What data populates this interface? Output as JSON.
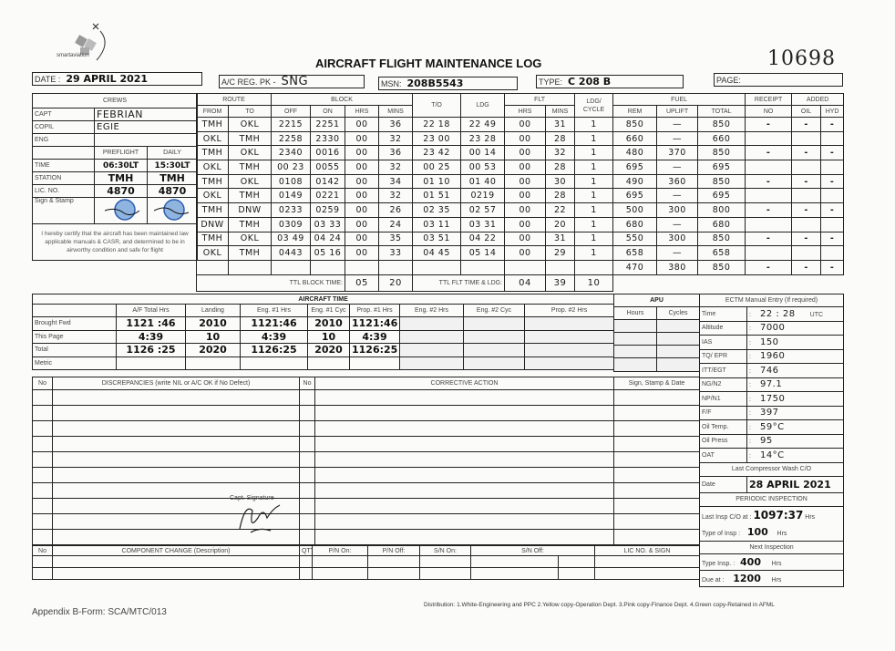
{
  "logo": {
    "text": "smartaviation"
  },
  "title": "AIRCRAFT FLIGHT MAINTENANCE LOG",
  "serial_no": "10698",
  "header": {
    "date_label": "DATE :",
    "date_value": "29 APRIL 2021",
    "reg_label": "A/C REG. PK -",
    "reg_value": "SNG",
    "msn_label": "MSN:",
    "msn_value": "208B5543",
    "type_label": "TYPE:",
    "type_value": "C 208 B",
    "page_label": "PAGE:",
    "page_value": ""
  },
  "crews": {
    "title": "CREWS",
    "capt_label": "CAPT",
    "capt": "FEBRIAN",
    "copil_label": "COPIL",
    "copil": "EGIE",
    "eng_label": "ENG",
    "eng": "",
    "preflight_label": "PREFLIGHT",
    "daily_label": "DAILY",
    "time_label": "TIME",
    "time_preflight": "06:30LT",
    "time_daily": "15:30LT",
    "station_label": "STATION",
    "station_preflight": "TMH",
    "station_daily": "TMH",
    "lic_label": "LIC. NO.",
    "lic_preflight": "4870",
    "lic_daily": "4870",
    "sign_label": "Sign & Stamp",
    "certify": "I hereby certify that the aircraft has been maintained law applicable manuals & CASR, and determined to be in airworthy condition and safe for flight"
  },
  "flights": {
    "headers": {
      "route": "ROUTE",
      "from": "FROM",
      "to": "TO",
      "block": "BLOCK",
      "off": "OFF",
      "on": "ON",
      "hrs": "HRS",
      "mins": "MINS",
      "to_time": "T/O",
      "ldg": "LDG",
      "flt": "FLT",
      "flt_hrs": "HRS",
      "flt_mins": "MINS",
      "ldg_cycle": "LDG/ CYCLE",
      "fuel": "FUEL",
      "rem": "REM",
      "uplift": "UPLIFT",
      "total": "TOTAL",
      "receipt": "RECEIPT",
      "receipt_no": "NO",
      "added": "ADDED",
      "oil": "OIL",
      "hyd": "HYD"
    },
    "rows": [
      [
        "TMH",
        "OKL",
        "2215",
        "2251",
        "00",
        "36",
        "22 18",
        "22 49",
        "00",
        "31",
        "1",
        "850",
        "—",
        "850",
        "-",
        "-",
        "-"
      ],
      [
        "OKL",
        "TMH",
        "2258",
        "2330",
        "00",
        "32",
        "23 00",
        "23 28",
        "00",
        "28",
        "1",
        "660",
        "—",
        "660",
        "",
        "",
        ""
      ],
      [
        "TMH",
        "OKL",
        "2340",
        "0016",
        "00",
        "36",
        "23 42",
        "00 14",
        "00",
        "32",
        "1",
        "480",
        "370",
        "850",
        "-",
        "-",
        "-"
      ],
      [
        "OKL",
        "TMH",
        "00 23",
        "0055",
        "00",
        "32",
        "00 25",
        "00 53",
        "00",
        "28",
        "1",
        "695",
        "—",
        "695",
        "",
        "",
        ""
      ],
      [
        "TMH",
        "OKL",
        "0108",
        "0142",
        "00",
        "34",
        "01 10",
        "01 40",
        "00",
        "30",
        "1",
        "490",
        "360",
        "850",
        "-",
        "-",
        "-"
      ],
      [
        "OKL",
        "TMH",
        "0149",
        "0221",
        "00",
        "32",
        "01 51",
        "0219",
        "00",
        "28",
        "1",
        "695",
        "—",
        "695",
        "",
        "",
        ""
      ],
      [
        "TMH",
        "DNW",
        "0233",
        "0259",
        "00",
        "26",
        "02 35",
        "02 57",
        "00",
        "22",
        "1",
        "500",
        "300",
        "800",
        "-",
        "-",
        "-"
      ],
      [
        "DNW",
        "TMH",
        "0309",
        "03 33",
        "00",
        "24",
        "03 11",
        "03 31",
        "00",
        "20",
        "1",
        "680",
        "—",
        "680",
        "",
        "",
        ""
      ],
      [
        "TMH",
        "OKL",
        "03 49",
        "04 24",
        "00",
        "35",
        "03 51",
        "04 22",
        "00",
        "31",
        "1",
        "550",
        "300",
        "850",
        "-",
        "-",
        "-"
      ],
      [
        "OKL",
        "TMH",
        "0443",
        "05 16",
        "00",
        "33",
        "04 45",
        "05 14",
        "00",
        "29",
        "1",
        "658",
        "—",
        "658",
        "",
        "",
        ""
      ],
      [
        "",
        "",
        "",
        "",
        "",
        "",
        "",
        "",
        "",
        "",
        "",
        "470",
        "380",
        "850",
        "-",
        "-",
        "-"
      ]
    ],
    "ttl_block_label": "TTL BLOCK TIME:",
    "ttl_block_hrs": "05",
    "ttl_block_mins": "20",
    "ttl_flt_label": "TTL FLT TIME & LDG:",
    "ttl_flt_hrs": "04",
    "ttl_flt_mins": "39",
    "ttl_ldg": "10"
  },
  "aircraft_time": {
    "title": "AIRCRAFT TIME",
    "columns": [
      "A/F Total Hrs",
      "Landing",
      "Eng. #1 Hrs",
      "Eng. #1 Cyc",
      "Prop. #1 Hrs",
      "Eng. #2 Hrs",
      "Eng. #2 Cyc",
      "Prop. #2 Hrs"
    ],
    "rows": [
      {
        "label": "Brought Fwd",
        "values": [
          "1121 :46",
          "2010",
          "1121:46",
          "2010",
          "1121:46",
          "",
          "",
          ""
        ]
      },
      {
        "label": "This Page",
        "values": [
          "4:39",
          "10",
          "4:39",
          "10",
          "4:39",
          "",
          "",
          ""
        ]
      },
      {
        "label": "Total",
        "values": [
          "1126 :25",
          "2020",
          "1126:25",
          "2020",
          "1126:25",
          "",
          "",
          ""
        ]
      },
      {
        "label": "Metric",
        "values": [
          "",
          "",
          "",
          "",
          "",
          "",
          "",
          ""
        ]
      }
    ]
  },
  "apu": {
    "title": "APU",
    "hours_label": "Hours",
    "cycles_label": "Cycles"
  },
  "ectm": {
    "title": "ECTM Manual Entry (If required)",
    "rows": [
      {
        "label": "Time",
        "value": "22 : 28",
        "unit": "UTC"
      },
      {
        "label": "Altitude",
        "value": "7000",
        "unit": ""
      },
      {
        "label": "IAS",
        "value": "150",
        "unit": ""
      },
      {
        "label": "TQ/ EPR",
        "value": "1960",
        "unit": ""
      },
      {
        "label": "ITT/EGT",
        "value": "746",
        "unit": ""
      },
      {
        "label": "NG/N2",
        "value": "97.1",
        "unit": ""
      },
      {
        "label": "NP/N1",
        "value": "1750",
        "unit": ""
      },
      {
        "label": "F/F",
        "value": "397",
        "unit": ""
      },
      {
        "label": "Oil Temp.",
        "value": "59°C",
        "unit": ""
      },
      {
        "label": "Oil Press",
        "value": "95",
        "unit": ""
      },
      {
        "label": "OAT",
        "value": "14°C",
        "unit": ""
      }
    ],
    "compressor_wash_title": "Last Compressor Wash C/O",
    "compressor_wash_date_label": "Date",
    "compressor_wash_date": "28 APRIL 2021",
    "periodic_title": "PERIODIC INSPECTION",
    "last_insp_label": "Last Insp C/O at",
    "last_insp_value": "1097:37",
    "last_insp_unit": "Hrs",
    "type_insp_label": "Type of Insp",
    "type_insp_value": "100",
    "type_insp_unit": "Hrs",
    "next_title": "Next Inspection",
    "next_type_label": "Type Insp.",
    "next_type_value": "400",
    "next_type_unit": "Hrs",
    "due_label": "Due at",
    "due_value": "1200",
    "due_unit": "Hrs"
  },
  "discrepancies": {
    "no_label": "No",
    "title": "DISCREPANCIES (write NIL or A/C OK if No Defect)",
    "no2_label": "No",
    "corrective_title": "CORRECTIVE ACTION",
    "sign_title": "Sign, Stamp & Date",
    "capt_signature_label": "Capt. Signature"
  },
  "component_change": {
    "no_label": "No",
    "title": "COMPONENT CHANGE (Description)",
    "qty": "QTY",
    "pn_on": "P/N On:",
    "pn_off": "P/N Off:",
    "sn_on": "S/N On:",
    "sn_off": "S/N Off:",
    "lic": "LIC NO. & SIGN"
  },
  "footer": {
    "form_no": "Appendix B-Form: SCA/MTC/013",
    "distribution": "Distribution: 1.White-Engineering and PPC  2.Yellow copy-Operation Dept.  3.Pink copy-Finance Dept.  4.Green copy-Retained in AFML"
  }
}
